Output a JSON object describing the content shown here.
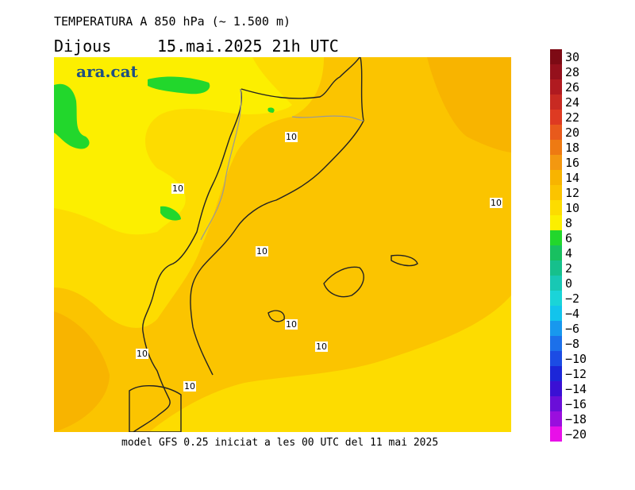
{
  "header": {
    "title": "TEMPERATURA A 850 hPa (~ 1.500 m)",
    "day": "Dijous",
    "datetime": "15.mai.2025 21h UTC"
  },
  "logo": "ara.cat",
  "footer": "model GFS 0.25 iniciat a les 00 UTC del 11 mai 2025",
  "map": {
    "contour_labels": [
      "10",
      "10",
      "10",
      "10",
      "10",
      "10",
      "10",
      "10"
    ]
  },
  "color_scale": {
    "labels": [
      "30",
      "28",
      "26",
      "24",
      "22",
      "20",
      "18",
      "16",
      "14",
      "12",
      "10",
      "8",
      "6",
      "4",
      "2",
      "0",
      "−2",
      "−4",
      "−6",
      "−8",
      "−10",
      "−12",
      "−14",
      "−16",
      "−18",
      "−20"
    ],
    "colors": [
      "#7d0a14",
      "#95101c",
      "#b01a20",
      "#c82a22",
      "#de3a22",
      "#e85a1c",
      "#ee7a12",
      "#f39810",
      "#f8b400",
      "#fbc400",
      "#fddc00",
      "#fcef00",
      "#22d72c",
      "#18c060",
      "#16c08c",
      "#18c8b4",
      "#1ad4d8",
      "#12c4ec",
      "#1898ee",
      "#1c70ea",
      "#1c4ce4",
      "#1c26d8",
      "#3a10d4",
      "#6a0ed8",
      "#9a0ede",
      "#e810e8"
    ]
  }
}
